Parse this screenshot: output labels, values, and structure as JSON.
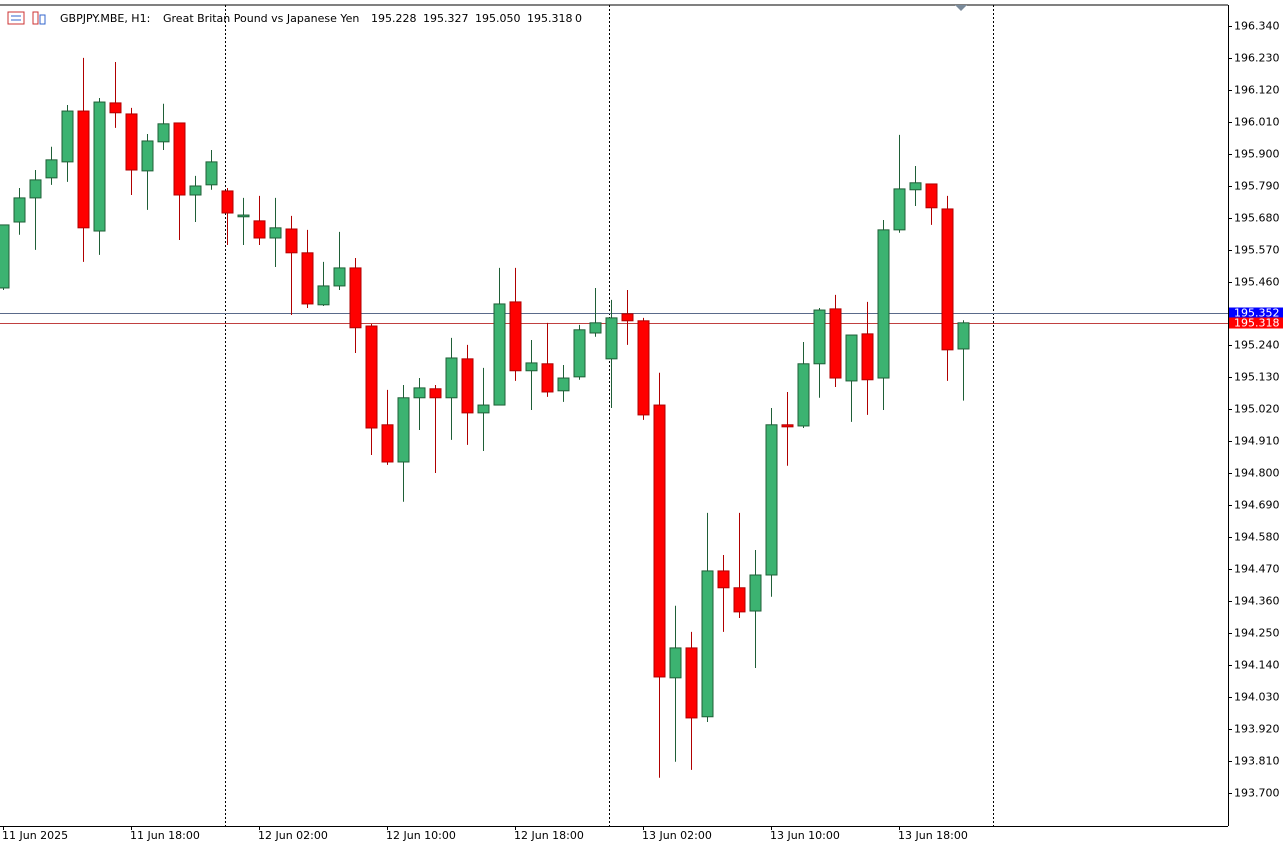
{
  "header": {
    "symbol": "GBPJPY.MBE, H1:",
    "description": "Great Britan Pound vs Japanese Yen",
    "values": [
      "195.228",
      "195.327",
      "195.050",
      "195.318",
      "0"
    ]
  },
  "chart_data": {
    "type": "candlestick",
    "up_color": "#3cb371",
    "up_outline": "#1f5f37",
    "down_color": "#ff0000",
    "down_outline": "#b00000",
    "categories": [
      "11 Jun 2025",
      null,
      null,
      null,
      null,
      null,
      null,
      null,
      "11 Jun 18:00",
      null,
      null,
      null,
      null,
      null,
      null,
      null,
      "12 Jun 02:00",
      null,
      null,
      null,
      null,
      null,
      null,
      null,
      "12 Jun 10:00",
      null,
      null,
      null,
      null,
      null,
      null,
      null,
      "12 Jun 18:00",
      null,
      null,
      null,
      null,
      null,
      null,
      null,
      "13 Jun 02:00",
      null,
      null,
      null,
      null,
      null,
      null,
      null,
      "13 Jun 10:00",
      null,
      null,
      null,
      null,
      null,
      null,
      null,
      "13 Jun 18:00",
      null,
      null,
      null,
      null
    ],
    "open": [
      195.438,
      195.665,
      195.748,
      195.817,
      195.872,
      196.047,
      195.634,
      196.075,
      196.037,
      195.841,
      195.941,
      196.006,
      195.758,
      195.793,
      195.772,
      195.683,
      195.669,
      195.61,
      195.641,
      195.559,
      195.38,
      195.445,
      195.507,
      195.307,
      194.967,
      194.839,
      195.06,
      195.091,
      195.06,
      195.194,
      195.008,
      195.035,
      195.39,
      195.153,
      195.177,
      195.084,
      195.132,
      195.283,
      195.194,
      195.349,
      195.325,
      195.035,
      194.096,
      194.199,
      193.962,
      194.464,
      194.406,
      194.326,
      194.45,
      194.967,
      194.963,
      195.177,
      195.366,
      195.118,
      195.28,
      195.128,
      195.638,
      195.776,
      195.796,
      195.71,
      195.228
    ],
    "high": [
      195.655,
      195.782,
      195.844,
      195.924,
      196.068,
      196.23,
      196.092,
      196.216,
      196.058,
      195.968,
      196.072,
      196.006,
      195.824,
      195.913,
      195.782,
      195.748,
      195.755,
      195.748,
      195.686,
      195.638,
      195.528,
      195.631,
      195.541,
      195.314,
      195.087,
      195.104,
      195.128,
      195.104,
      195.266,
      195.242,
      195.163,
      195.507,
      195.507,
      195.259,
      195.318,
      195.173,
      195.311,
      195.438,
      195.397,
      195.431,
      195.335,
      195.146,
      194.344,
      194.254,
      194.664,
      194.519,
      194.664,
      194.536,
      195.025,
      195.08,
      195.252,
      195.369,
      195.414,
      195.276,
      195.39,
      195.672,
      195.965,
      195.858,
      195.796,
      195.755,
      195.327
    ],
    "low": [
      195.431,
      195.621,
      195.569,
      195.793,
      195.803,
      195.528,
      195.552,
      195.989,
      195.758,
      195.707,
      195.913,
      195.603,
      195.665,
      195.776,
      195.586,
      195.586,
      195.586,
      195.51,
      195.345,
      195.369,
      195.376,
      195.431,
      195.214,
      194.863,
      194.829,
      194.702,
      194.949,
      194.801,
      194.915,
      194.898,
      194.877,
      195.035,
      195.118,
      195.018,
      195.063,
      195.046,
      195.122,
      195.27,
      195.025,
      195.242,
      194.984,
      193.752,
      193.807,
      193.779,
      193.944,
      194.254,
      194.302,
      194.13,
      194.375,
      194.826,
      194.956,
      195.06,
      195.097,
      194.977,
      195.001,
      195.018,
      195.628,
      195.72,
      195.655,
      195.118,
      195.05
    ],
    "close": [
      195.655,
      195.748,
      195.81,
      195.879,
      196.047,
      195.645,
      196.078,
      196.041,
      195.844,
      195.944,
      196.003,
      195.758,
      195.789,
      195.872,
      195.696,
      195.689,
      195.61,
      195.645,
      195.559,
      195.383,
      195.445,
      195.507,
      195.301,
      194.956,
      194.839,
      195.06,
      195.094,
      195.06,
      195.197,
      195.008,
      195.035,
      195.383,
      195.153,
      195.18,
      195.08,
      195.128,
      195.294,
      195.318,
      195.335,
      195.325,
      195.001,
      194.099,
      194.199,
      193.958,
      194.464,
      194.406,
      194.323,
      194.45,
      194.967,
      194.96,
      195.177,
      195.362,
      195.128,
      195.276,
      195.122,
      195.638,
      195.779,
      195.8,
      195.714,
      195.225,
      195.318
    ],
    "ylim": [
      193.586,
      196.412
    ],
    "yticks": [
      {
        "value": 196.34,
        "label": "196.340"
      },
      {
        "value": 196.23,
        "label": "196.230"
      },
      {
        "value": 196.12,
        "label": "196.120"
      },
      {
        "value": 196.01,
        "label": "196.010"
      },
      {
        "value": 195.9,
        "label": "195.900"
      },
      {
        "value": 195.79,
        "label": "195.790"
      },
      {
        "value": 195.68,
        "label": "195.680"
      },
      {
        "value": 195.57,
        "label": "195.570"
      },
      {
        "value": 195.46,
        "label": "195.460"
      },
      {
        "value": 195.24,
        "label": "195.240"
      },
      {
        "value": 195.13,
        "label": "195.130"
      },
      {
        "value": 195.02,
        "label": "195.020"
      },
      {
        "value": 194.91,
        "label": "194.910"
      },
      {
        "value": 194.8,
        "label": "194.800"
      },
      {
        "value": 194.69,
        "label": "194.690"
      },
      {
        "value": 194.58,
        "label": "194.580"
      },
      {
        "value": 194.47,
        "label": "194.470"
      },
      {
        "value": 194.36,
        "label": "194.360"
      },
      {
        "value": 194.25,
        "label": "194.250"
      },
      {
        "value": 194.14,
        "label": "194.140"
      },
      {
        "value": 194.03,
        "label": "194.030"
      },
      {
        "value": 193.92,
        "label": "193.920"
      },
      {
        "value": 193.81,
        "label": "193.810"
      },
      {
        "value": 193.7,
        "label": "193.700"
      }
    ],
    "price_lines": [
      {
        "value": 195.352,
        "color": "#0000ff",
        "line_color": "#5a6a8a"
      },
      {
        "value": 195.318,
        "color": "#ff0000",
        "line_color": "#c04040"
      }
    ],
    "grid": false
  }
}
